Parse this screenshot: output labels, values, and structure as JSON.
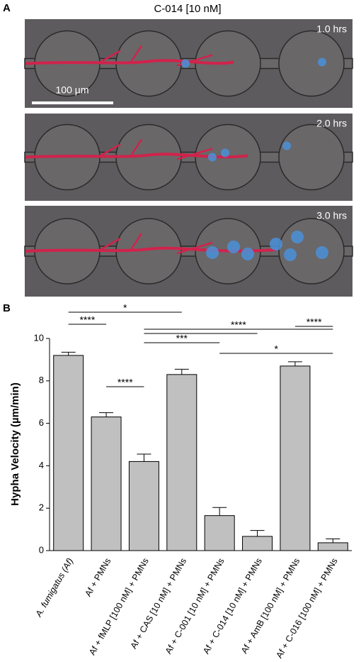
{
  "panel_a": {
    "letter": "A",
    "title": "C-014 [10 nM]",
    "scale_bar": "100 µm",
    "frames": [
      "1.0 hrs",
      "2.0 hrs",
      "3.0 hrs"
    ]
  },
  "chart_data": {
    "type": "bar",
    "letter": "B",
    "y_label": "Hypha Velocity (µm/min)",
    "categories": [
      "A. fumigatus (Af)",
      "Af + PMNs",
      "Af + fMLP [100 nM] + PMNs",
      "Af + CAS [10 nM] + PMNs",
      "Af + C-001 [10 nM] + PMNs",
      "Af + C-014 [10 nM] + PMNs",
      "Af + AmB [100 nM] + PMNs",
      "Af + C-016 [100 nM] + PMNs"
    ],
    "values": [
      9.2,
      6.3,
      4.2,
      8.3,
      1.65,
      0.67,
      8.7,
      0.37
    ],
    "errors": [
      0.15,
      0.2,
      0.35,
      0.25,
      0.38,
      0.28,
      0.2,
      0.18
    ],
    "color": "#c0c0c0",
    "ylim": [
      0,
      10
    ],
    "yticks": [
      0,
      2,
      4,
      6,
      8,
      10
    ],
    "significance": [
      "*",
      "****",
      "****",
      "***",
      "*",
      "****",
      "****"
    ]
  }
}
